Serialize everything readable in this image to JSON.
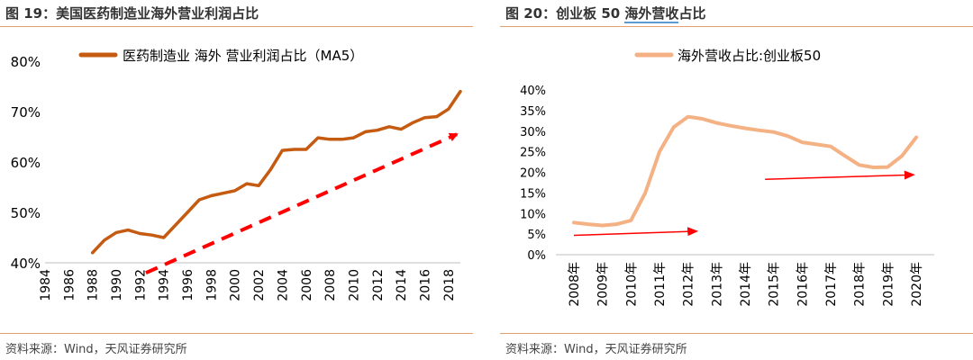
{
  "left": {
    "title": "图 19：美国医药制造业海外营业利润占比",
    "source": "资料来源：Wind，天风证券研究所"
  },
  "right": {
    "title_prefix": "图 20：创业板 50 ",
    "title_underlined": "海外营收",
    "title_suffix": "占比",
    "source": "资料来源：Wind，天风证券研究所"
  },
  "colors": {
    "rule": "#e8a070",
    "left_series": "#c55a11",
    "right_series": "#f4b183",
    "arrow": "#ff0000"
  },
  "chart_data": [
    {
      "type": "line",
      "title": "",
      "xlabel": "",
      "ylabel": "",
      "ylim": [
        40,
        80
      ],
      "xlim": [
        1984,
        2019
      ],
      "y_ticks": [
        "40%",
        "50%",
        "60%",
        "70%",
        "80%"
      ],
      "x_ticks": [
        "1984",
        "1986",
        "1988",
        "1990",
        "1992",
        "1994",
        "1996",
        "1998",
        "2000",
        "2002",
        "2004",
        "2006",
        "2008",
        "2010",
        "2012",
        "2014",
        "2016",
        "2018"
      ],
      "legend": "top",
      "series": [
        {
          "name": "医药制造业 海外 营业利润占比（MA5）",
          "x": [
            1988,
            1989,
            1990,
            1991,
            1992,
            1993,
            1994,
            1995,
            1996,
            1997,
            1998,
            1999,
            2000,
            2001,
            2002,
            2003,
            2004,
            2005,
            2006,
            2007,
            2008,
            2009,
            2010,
            2011,
            2012,
            2013,
            2014,
            2015,
            2016,
            2017,
            2018,
            2019
          ],
          "y": [
            42.0,
            44.5,
            46.0,
            46.5,
            45.8,
            45.5,
            45.0,
            47.5,
            50.0,
            52.5,
            53.3,
            53.8,
            54.3,
            55.7,
            55.3,
            58.5,
            62.3,
            62.5,
            62.5,
            64.8,
            64.5,
            64.5,
            64.8,
            66.0,
            66.3,
            67.0,
            66.5,
            67.8,
            68.8,
            69.0,
            70.5,
            74.0
          ]
        }
      ],
      "annotations": [
        {
          "type": "trend-arrow",
          "from": [
            1992.5,
            38.0
          ],
          "to": [
            2018.7,
            65.5
          ],
          "style": "dashed",
          "color": "#ff0000"
        }
      ]
    },
    {
      "type": "line",
      "title": "",
      "xlabel": "",
      "ylabel": "",
      "ylim": [
        0,
        40
      ],
      "y_ticks": [
        "0%",
        "5%",
        "10%",
        "15%",
        "20%",
        "25%",
        "30%",
        "35%",
        "40%"
      ],
      "categories": [
        "2008年",
        "2009年",
        "2010年",
        "2011年",
        "2012年",
        "2013年",
        "2014年",
        "2015年",
        "2016年",
        "2017年",
        "2018年",
        "2019年",
        "2020年"
      ],
      "legend": "top",
      "series": [
        {
          "name": "海外营收占比:创业板50",
          "x": [
            2008.0,
            2008.5,
            2009.0,
            2009.5,
            2010.0,
            2010.5,
            2011.0,
            2011.5,
            2012.0,
            2012.5,
            2013.0,
            2013.5,
            2014.0,
            2014.5,
            2015.0,
            2015.5,
            2016.0,
            2016.5,
            2017.0,
            2017.5,
            2018.0,
            2018.5,
            2019.0,
            2019.5,
            2020.0
          ],
          "y": [
            7.8,
            7.4,
            7.1,
            7.4,
            8.3,
            15.0,
            25.0,
            31.0,
            33.5,
            33.0,
            32.0,
            31.3,
            30.7,
            30.2,
            29.8,
            28.8,
            27.3,
            26.8,
            26.3,
            24.0,
            21.8,
            21.2,
            21.3,
            24.0,
            28.5
          ]
        }
      ],
      "annotations": [
        {
          "type": "arrow",
          "from": [
            2008.0,
            4.7
          ],
          "to": [
            2012.3,
            5.7
          ],
          "color": "#ff0000"
        },
        {
          "type": "arrow",
          "from": [
            2014.7,
            18.3
          ],
          "to": [
            2019.9,
            19.4
          ],
          "color": "#ff0000"
        }
      ]
    }
  ]
}
